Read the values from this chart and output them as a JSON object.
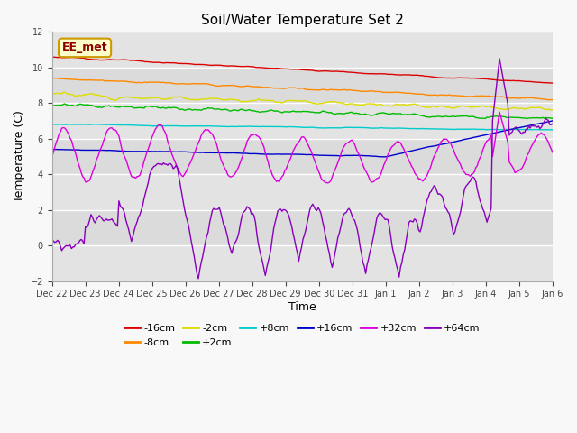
{
  "title": "Soil/Water Temperature Set 2",
  "xlabel": "Time",
  "ylabel": "Temperature (C)",
  "ylim": [
    -2,
    12
  ],
  "yticks": [
    -2,
    0,
    2,
    4,
    6,
    8,
    10,
    12
  ],
  "background_color": "#f8f8f8",
  "plot_bg_color": "#e8e8e8",
  "annotation_text": "EE_met",
  "annotation_bg": "#ffffcc",
  "annotation_border": "#cc9900",
  "annotation_text_color": "#8b0000",
  "x_labels": [
    "Dec 22",
    "Dec 23",
    "Dec 24",
    "Dec 25",
    "Dec 26",
    "Dec 27",
    "Dec 28",
    "Dec 29",
    "Dec 30",
    "Dec 31",
    "Jan 1",
    "Jan 2",
    "Jan 3",
    "Jan 4",
    "Jan 5",
    "Jan 6"
  ],
  "series": [
    {
      "label": "-16cm",
      "color": "#dd0000"
    },
    {
      "label": "-8cm",
      "color": "#ff8800"
    },
    {
      "label": "-2cm",
      "color": "#dddd00"
    },
    {
      "label": "+2cm",
      "color": "#00bb00"
    },
    {
      "label": "+8cm",
      "color": "#00cccc"
    },
    {
      "label": "+16cm",
      "color": "#0000cc"
    },
    {
      "label": "+32cm",
      "color": "#dd00dd"
    },
    {
      "label": "+64cm",
      "color": "#8800bb"
    }
  ]
}
